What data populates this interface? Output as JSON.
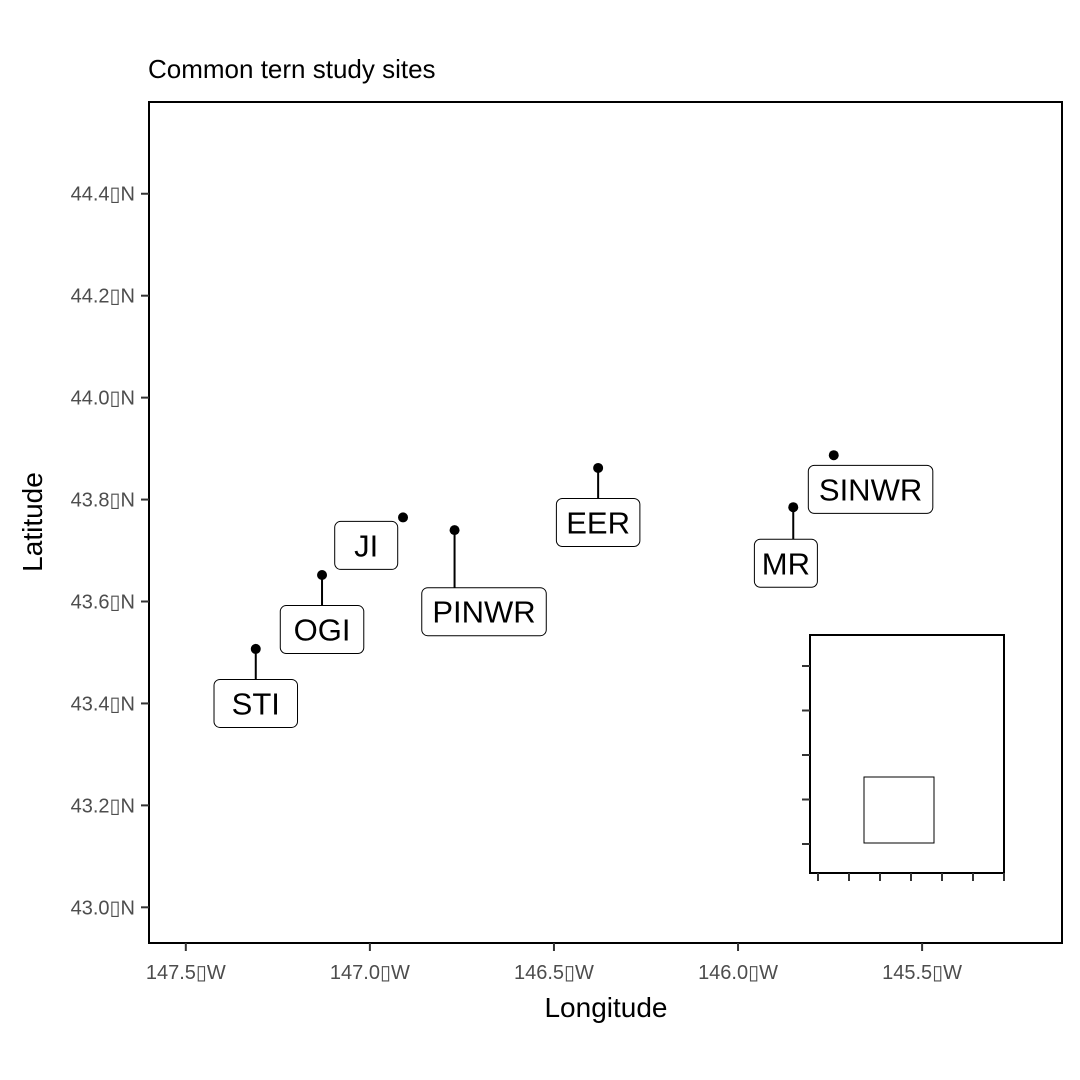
{
  "chart_data": {
    "type": "scatter",
    "title": "Common tern study sites",
    "xlabel": "Longitude",
    "ylabel": "Latitude",
    "xlim": [
      -147.6,
      -145.12
    ],
    "ylim": [
      42.93,
      44.58
    ],
    "x_ticks": [
      {
        "value": -147.5,
        "label": "147.5▯W"
      },
      {
        "value": -147.0,
        "label": "147.0▯W"
      },
      {
        "value": -146.5,
        "label": "146.5▯W"
      },
      {
        "value": -146.0,
        "label": "146.0▯W"
      },
      {
        "value": -145.5,
        "label": "145.5▯W"
      }
    ],
    "y_ticks": [
      {
        "value": 43.0,
        "label": "43.0▯N"
      },
      {
        "value": 43.2,
        "label": "43.2▯N"
      },
      {
        "value": 43.4,
        "label": "43.4▯N"
      },
      {
        "value": 43.6,
        "label": "43.6▯N"
      },
      {
        "value": 43.8,
        "label": "43.8▯N"
      },
      {
        "value": 44.0,
        "label": "44.0▯N"
      },
      {
        "value": 44.2,
        "label": "44.2▯N"
      },
      {
        "value": 44.4,
        "label": "44.4▯N"
      }
    ],
    "grid": false,
    "points": [
      {
        "name": "STI",
        "x": -147.31,
        "y": 43.507,
        "label_x": -147.31,
        "label_y": 43.4
      },
      {
        "name": "OGI",
        "x": -147.13,
        "y": 43.652,
        "label_x": -147.13,
        "label_y": 43.545
      },
      {
        "name": "JI",
        "x": -146.91,
        "y": 43.765,
        "label_x": -147.01,
        "label_y": 43.71
      },
      {
        "name": "PINWR",
        "x": -146.77,
        "y": 43.74,
        "label_x": -146.69,
        "label_y": 43.58
      },
      {
        "name": "EER",
        "x": -146.38,
        "y": 43.862,
        "label_x": -146.38,
        "label_y": 43.755
      },
      {
        "name": "SINWR",
        "x": -145.74,
        "y": 43.887,
        "label_x": -145.64,
        "label_y": 43.82
      },
      {
        "name": "MR",
        "x": -145.85,
        "y": 43.785,
        "label_x": -145.87,
        "label_y": 43.675
      }
    ],
    "inset": {
      "description_free": true,
      "ticks_left": 5,
      "ticks_bottom": 7
    }
  }
}
